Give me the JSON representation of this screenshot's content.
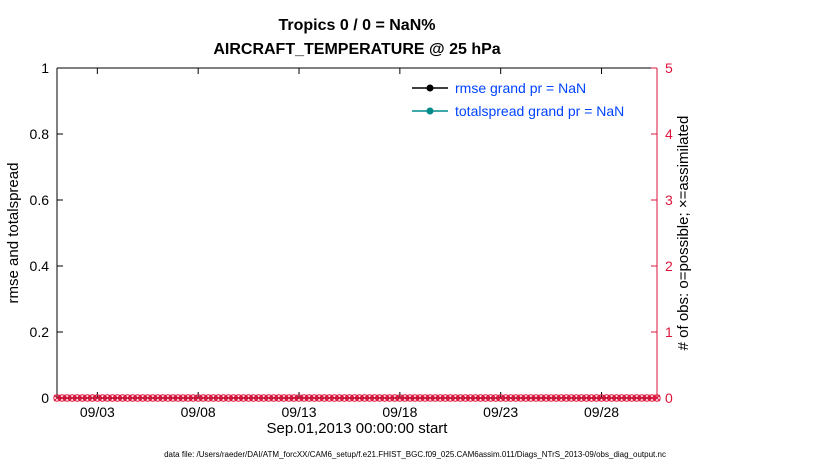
{
  "figure": {
    "title_line1": "Tropics 0 / 0 = NaN%",
    "title_line2": "AIRCRAFT_TEMPERATURE @ 25 hPa",
    "xlabel": "Sep.01,2013 00:00:00 start",
    "ylabel_left": "rmse and totalspread",
    "ylabel_right": "# of obs: o=possible; ×=assimilated",
    "caption": "data file: /Users/raeder/DAI/ATM_forcXX/CAM6_setup/f.e21.FHIST_BGC.f09_025.CAM6assim.011/Diags_NTrS_2013-09/obs_diag_output.nc",
    "colors": {
      "obs": "#dc143c",
      "rmse": "#000000",
      "totalspread": "#008b8b",
      "legend_text": "#0044ff",
      "axis": "#000000"
    }
  },
  "legend": [
    {
      "label": "rmse grand pr = NaN",
      "color": "#000000"
    },
    {
      "label": "totalspread grand pr = NaN",
      "color": "#008b8b"
    }
  ],
  "chart_data": {
    "type": "line",
    "title": "Tropics 0 / 0 = NaN%",
    "subtitle": "AIRCRAFT_TEMPERATURE @ 25 hPa",
    "x_axis": {
      "label": "Sep.01,2013 00:00:00 start",
      "range_days": [
        0,
        29.75
      ],
      "tick_days": [
        2,
        7,
        12,
        17,
        22,
        27
      ],
      "tick_labels": [
        "09/03",
        "09/08",
        "09/13",
        "09/18",
        "09/23",
        "09/28"
      ]
    },
    "y_left": {
      "label": "rmse and totalspread",
      "range": [
        0,
        1
      ],
      "ticks": [
        "0",
        "0.2",
        "0.4",
        "0.6",
        "0.8",
        "1"
      ]
    },
    "y_right": {
      "label": "# of obs: o=possible; ×=assimilated",
      "range": [
        0,
        5
      ],
      "ticks": [
        "0",
        "1",
        "2",
        "3",
        "4",
        "5"
      ]
    },
    "series": [
      {
        "name": "rmse grand pr = NaN",
        "values": "NaN (no curve plotted)"
      },
      {
        "name": "totalspread grand pr = NaN",
        "values": "NaN (no curve plotted)"
      }
    ],
    "obs_counts": {
      "possible_value": 0,
      "assimilated_value": 0,
      "marker_days": {
        "start": 0,
        "end": 29.75,
        "step": 0.25
      }
    },
    "grid": false,
    "legend_position": "top-center-inside, no box"
  }
}
